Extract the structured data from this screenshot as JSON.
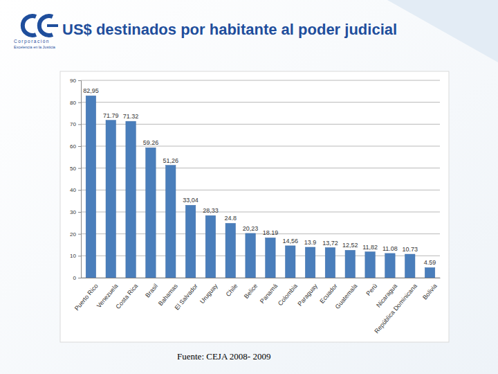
{
  "page": {
    "logo_name": "Corporación",
    "logo_tagline": "Excelencia en la Justicia",
    "source": "Fuente: CEJA 2008- 2009"
  },
  "chart_data": {
    "type": "bar",
    "title": "US$ destinados por habitante al poder judicial",
    "categories": [
      "Puerto Rico",
      "Venezuela",
      "Costa Rica",
      "Brasil",
      "Bahamas",
      "El Salvador",
      "Uruguay",
      "Chile",
      "Belice",
      "Panamá",
      "Colombia",
      "Paraguay",
      "Ecuador",
      "Guatemala",
      "Perú",
      "Nicaragua",
      "República Dominicana",
      "Bolivia"
    ],
    "values": [
      82.95,
      71.79,
      71.32,
      59.26,
      51.26,
      33.04,
      28.33,
      24.8,
      20.23,
      18.19,
      14.56,
      13.9,
      13.72,
      12.52,
      11.82,
      11.08,
      10.73,
      4.59
    ],
    "value_labels": [
      "82,95",
      "71.79",
      "71.32",
      "59.26",
      "51,26",
      "33,04",
      "28,33",
      "24.8",
      "20,23",
      "18.19",
      "14,56",
      "13.9",
      "13,72",
      "12,52",
      "11,82",
      "11.08",
      "10.73",
      "4.59"
    ],
    "color": "#4a7ebb",
    "ylim": [
      0,
      90
    ],
    "yticks": [
      0,
      10,
      20,
      30,
      40,
      50,
      60,
      70,
      80,
      90
    ],
    "grid": true,
    "data_labels": true
  }
}
